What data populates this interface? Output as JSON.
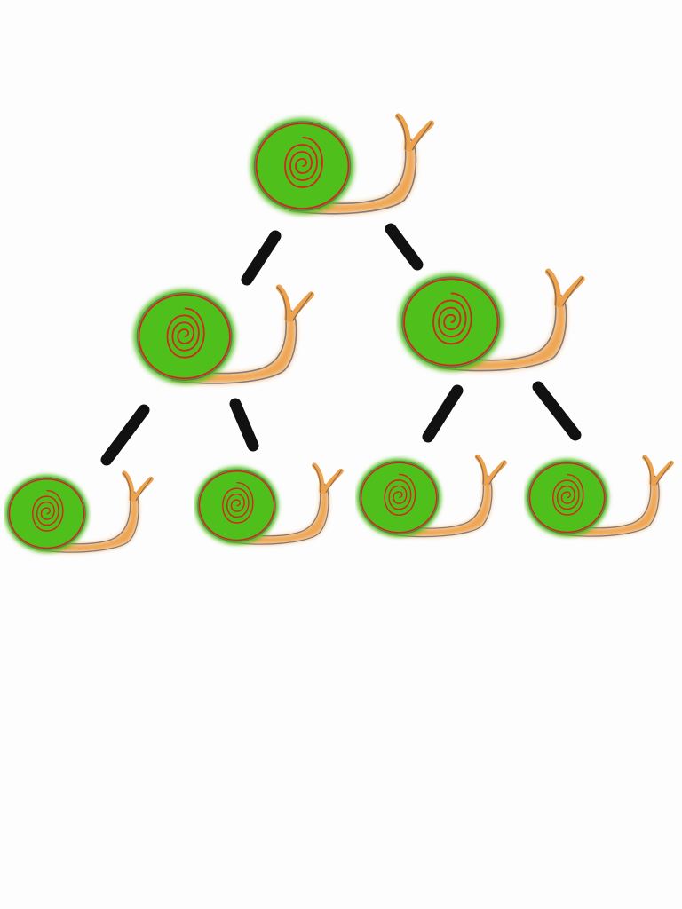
{
  "diagram": {
    "type": "binary-tree",
    "levels": 3,
    "node_icon": "snail-icon",
    "nodes": [
      {
        "id": "root",
        "level": 0,
        "icon": "snail-icon"
      },
      {
        "id": "l1-left",
        "level": 1,
        "icon": "snail-icon"
      },
      {
        "id": "l1-right",
        "level": 1,
        "icon": "snail-icon"
      },
      {
        "id": "l2-1",
        "level": 2,
        "icon": "snail-icon"
      },
      {
        "id": "l2-2",
        "level": 2,
        "icon": "snail-icon"
      },
      {
        "id": "l2-3",
        "level": 2,
        "icon": "snail-icon"
      },
      {
        "id": "l2-4",
        "level": 2,
        "icon": "snail-icon"
      }
    ],
    "edges": [
      {
        "from": "root",
        "to": "l1-left"
      },
      {
        "from": "root",
        "to": "l1-right"
      },
      {
        "from": "l1-left",
        "to": "l2-1"
      },
      {
        "from": "l1-left",
        "to": "l2-2"
      },
      {
        "from": "l1-right",
        "to": "l2-3"
      },
      {
        "from": "l1-right",
        "to": "l2-4"
      }
    ],
    "colors": {
      "background": "#fdfdfd",
      "shell_fill": "#4fbf1f",
      "shell_spiral": "#d0281c",
      "body": "#eea24c",
      "outline": "#555566",
      "edge": "#111111"
    }
  }
}
